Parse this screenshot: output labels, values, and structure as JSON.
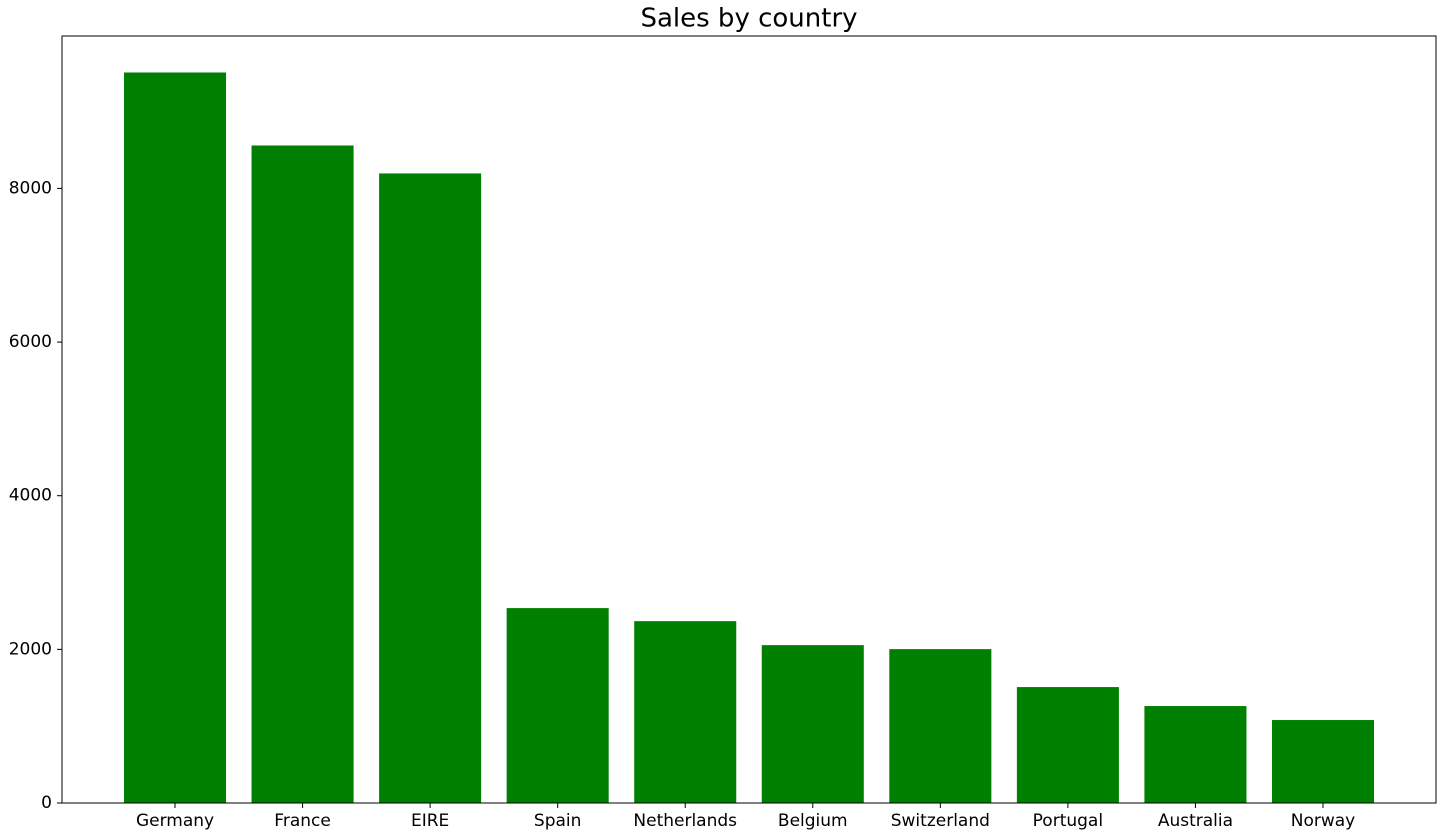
{
  "chart_data": {
    "type": "bar",
    "title": "Sales by country",
    "categories": [
      "Germany",
      "France",
      "EIRE",
      "Spain",
      "Netherlands",
      "Belgium",
      "Switzerland",
      "Portugal",
      "Australia",
      "Norway"
    ],
    "values": [
      9509,
      8559,
      8195,
      2537,
      2367,
      2055,
      2003,
      1509,
      1262,
      1080
    ],
    "color": "#008000",
    "ylim": [
      0,
      9984
    ],
    "yticks": [
      0,
      2000,
      4000,
      6000,
      8000
    ],
    "grid": false
  }
}
